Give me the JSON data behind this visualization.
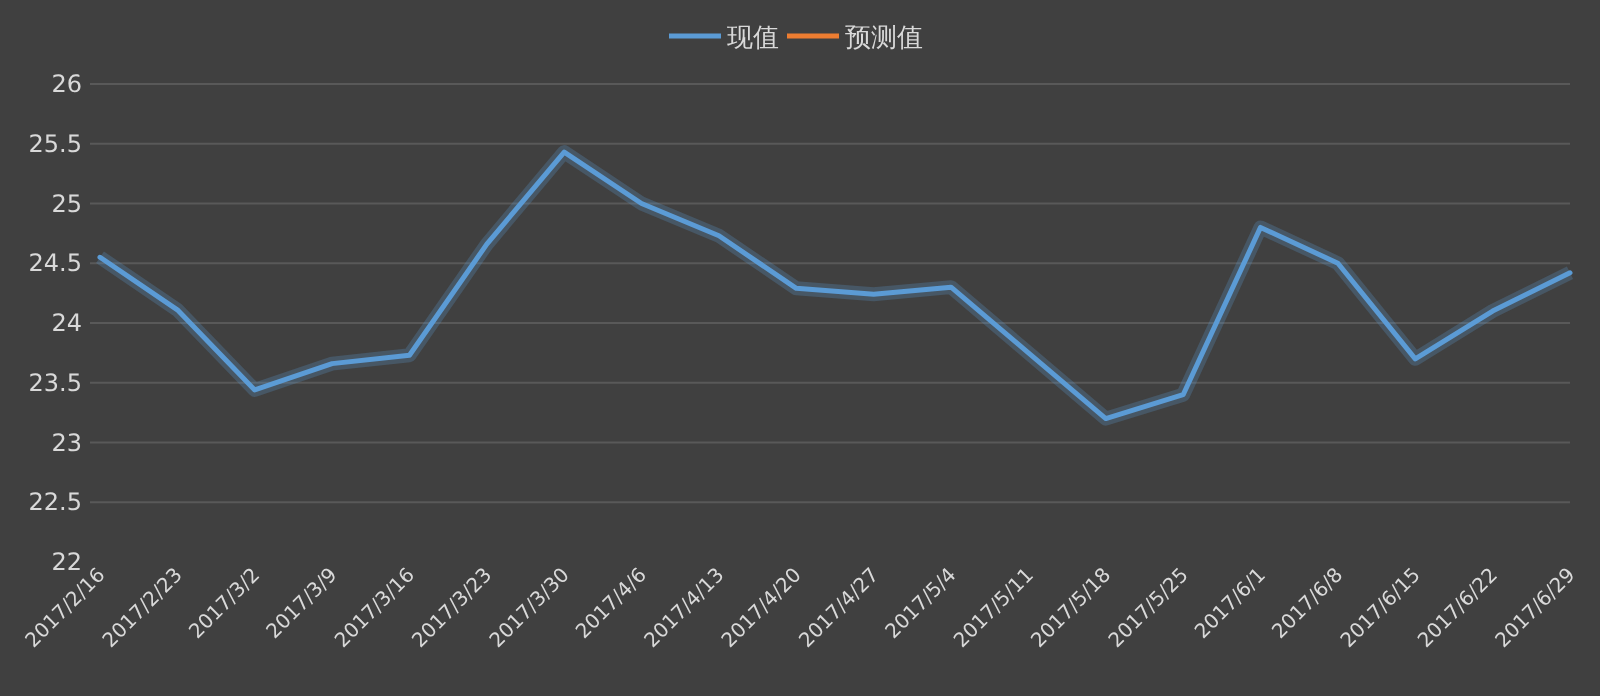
{
  "chart_data": {
    "type": "line",
    "categories": [
      "2017/2/16",
      "2017/2/23",
      "2017/3/2",
      "2017/3/9",
      "2017/3/16",
      "2017/3/23",
      "2017/3/30",
      "2017/4/6",
      "2017/4/13",
      "2017/4/20",
      "2017/4/27",
      "2017/5/4",
      "2017/5/11",
      "2017/5/18",
      "2017/5/25",
      "2017/6/1",
      "2017/6/8",
      "2017/6/15",
      "2017/6/22",
      "2017/6/29"
    ],
    "series": [
      {
        "name": "现值",
        "color": "#5b9bd5",
        "values": [
          24.55,
          24.11,
          23.44,
          23.66,
          23.73,
          24.66,
          25.43,
          25.0,
          24.73,
          24.29,
          24.24,
          24.3,
          23.75,
          23.2,
          23.4,
          24.8,
          24.5,
          23.7,
          24.1,
          24.42
        ]
      },
      {
        "name": "预测值",
        "color": "#ed7d31",
        "values": [
          null,
          null,
          null,
          null,
          null,
          null,
          null,
          null,
          null,
          null,
          null,
          null,
          null,
          null,
          null,
          null,
          null,
          null,
          null,
          null
        ]
      }
    ],
    "ylim": [
      22,
      26
    ],
    "yticks": [
      22,
      22.5,
      23,
      23.5,
      24,
      24.5,
      25,
      25.5,
      26
    ],
    "grid": "y",
    "legend": "top",
    "marker": "none",
    "line_style": "solid"
  }
}
